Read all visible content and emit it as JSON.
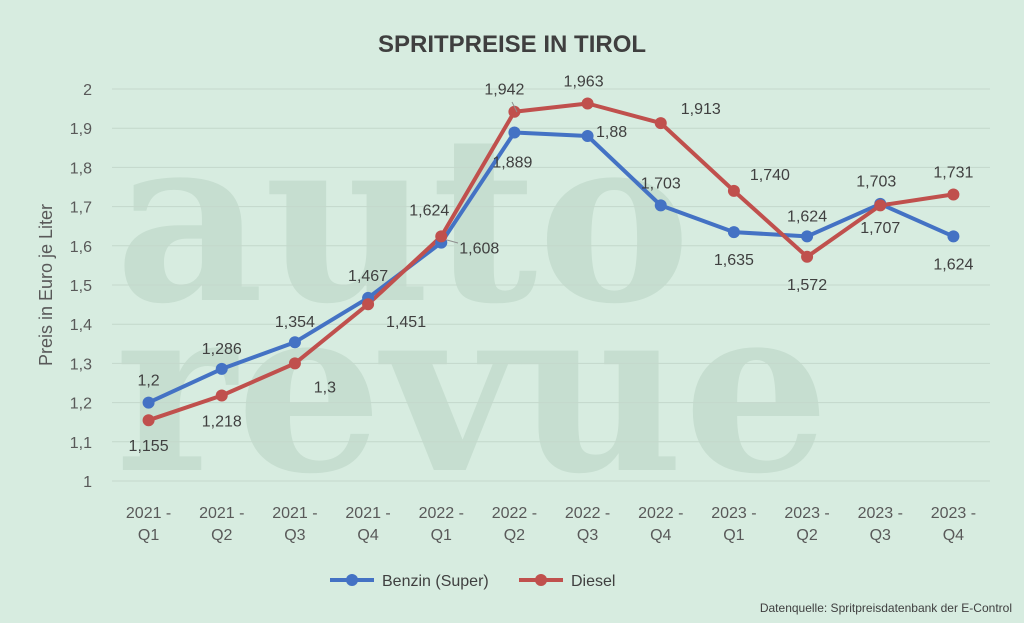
{
  "chart_data": {
    "type": "line",
    "title": "SPRITPREISE IN TIROL",
    "ylabel": "Preis in Euro je Liter",
    "xlabel": "",
    "categories": [
      [
        "2021 -",
        "Q1"
      ],
      [
        "2021 -",
        "Q2"
      ],
      [
        "2021 -",
        "Q3"
      ],
      [
        "2021 -",
        "Q4"
      ],
      [
        "2022 -",
        "Q1"
      ],
      [
        "2022 -",
        "Q2"
      ],
      [
        "2022 -",
        "Q3"
      ],
      [
        "2022 -",
        "Q4"
      ],
      [
        "2023 -",
        "Q1"
      ],
      [
        "2023 -",
        "Q2"
      ],
      [
        "2023 -",
        "Q3"
      ],
      [
        "2023 -",
        "Q4"
      ]
    ],
    "ylim": [
      1,
      2
    ],
    "yticks": [
      1,
      1.1,
      1.2,
      1.3,
      1.4,
      1.5,
      1.6,
      1.7,
      1.8,
      1.9,
      2
    ],
    "ytick_labels": [
      "1",
      "1,1",
      "1,2",
      "1,3",
      "1,4",
      "1,5",
      "1,6",
      "1,7",
      "1,8",
      "1,9",
      "2"
    ],
    "grid": true,
    "legend_position": "bottom",
    "series": [
      {
        "name": "Benzin (Super)",
        "color": "#4472c4",
        "values": [
          1.2,
          1.286,
          1.354,
          1.467,
          1.608,
          1.889,
          1.88,
          1.703,
          1.635,
          1.624,
          1.707,
          1.624
        ],
        "labels": [
          "1,2",
          "1,286",
          "1,354",
          "1,467",
          "1,608",
          "1,889",
          "1,88",
          "1,703",
          "1,635",
          "1,624",
          "1,707",
          "1,624"
        ]
      },
      {
        "name": "Diesel",
        "color": "#c0504d",
        "values": [
          1.155,
          1.218,
          1.3,
          1.451,
          1.624,
          1.942,
          1.963,
          1.913,
          1.74,
          1.572,
          1.703,
          1.731
        ],
        "labels": [
          "1,155",
          "1,218",
          "1,3",
          "1,451",
          "1,624",
          "1,942",
          "1,963",
          "1,913",
          "1,740",
          "1,572",
          "1,703",
          "1,731"
        ]
      }
    ],
    "source": "Datenquelle: Spritpreisdatenbank der E-Control"
  },
  "watermark": {
    "line1": "auto",
    "line2": "revue"
  },
  "colors": {
    "background": "#d7ece0",
    "grid": "#c4d8cb"
  }
}
